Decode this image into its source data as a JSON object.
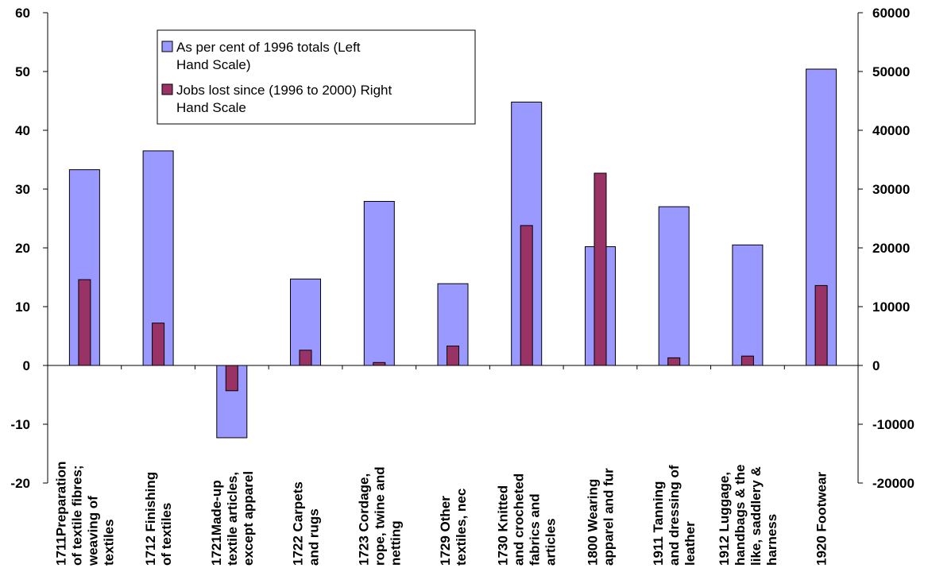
{
  "chart_data": {
    "type": "bar",
    "title": "",
    "categories": [
      [
        "1711Preparation",
        "of textile fibres;",
        "weaving of",
        "textiles"
      ],
      [
        "1712 Finishing",
        "of textiles"
      ],
      [
        "1721Made-up",
        "textile articles,",
        "except apparel"
      ],
      [
        "1722 Carpets",
        "and rugs"
      ],
      [
        "1723 Cordage,",
        "rope, twine and",
        "netting"
      ],
      [
        "1729 Other",
        "textiles, nec"
      ],
      [
        "1730 Knitted",
        "and crocheted",
        "fabrics and",
        "articles"
      ],
      [
        "1800 Wearing",
        "apparel and fur"
      ],
      [
        "1911 Tanning",
        "and dressing of",
        "leather"
      ],
      [
        "1912  Luggage,",
        "handbags & the",
        "like, saddlery &",
        "harness"
      ],
      [
        "1920 Footwear"
      ]
    ],
    "series": [
      {
        "name": "As per cent of 1996 totals (Left Hand Scale)",
        "axis": "left",
        "color": "#9999ff",
        "values": [
          33.3,
          36.5,
          -12.3,
          14.7,
          27.9,
          13.9,
          44.8,
          20.2,
          27.0,
          20.5,
          50.4
        ]
      },
      {
        "name": "Jobs lost since (1996 to 2000) Right Hand Scale",
        "axis": "right",
        "color": "#993366",
        "values": [
          14600,
          7200,
          -4300,
          2600,
          500,
          3300,
          23800,
          32700,
          1300,
          1600,
          13600
        ]
      }
    ],
    "y_left": {
      "min": -20,
      "max": 60,
      "ticks": [
        "60",
        "50",
        "40",
        "30",
        "20",
        "10",
        "0",
        "-10",
        "-20"
      ]
    },
    "y_right": {
      "min": -20000,
      "max": 60000,
      "ticks": [
        "60000",
        "50000",
        "40000",
        "30000",
        "20000",
        "10000",
        "0",
        "-10000",
        "-20000"
      ]
    },
    "legend": {
      "items": [
        {
          "lines": [
            "As per cent of 1996 totals (Left",
            "Hand Scale)"
          ],
          "color": "#9999ff"
        },
        {
          "lines": [
            "Jobs lost since (1996 to 2000) Right",
            "Hand Scale"
          ],
          "color": "#993366"
        }
      ],
      "placement": "top-center"
    },
    "grid": false
  }
}
